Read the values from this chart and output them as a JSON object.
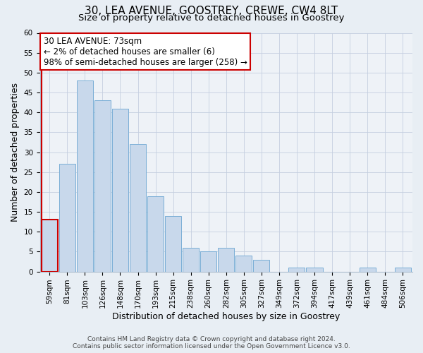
{
  "title": "30, LEA AVENUE, GOOSTREY, CREWE, CW4 8LT",
  "subtitle": "Size of property relative to detached houses in Goostrey",
  "xlabel": "Distribution of detached houses by size in Goostrey",
  "ylabel": "Number of detached properties",
  "bar_color": "#c8d8eb",
  "bar_edge_color": "#7aaed6",
  "highlight_bar_edge_color": "#cc0000",
  "background_color": "#e8eef4",
  "plot_bg_color": "#eef2f7",
  "grid_color": "#c5cfe0",
  "categories": [
    "59sqm",
    "81sqm",
    "103sqm",
    "126sqm",
    "148sqm",
    "170sqm",
    "193sqm",
    "215sqm",
    "238sqm",
    "260sqm",
    "282sqm",
    "305sqm",
    "327sqm",
    "349sqm",
    "372sqm",
    "394sqm",
    "417sqm",
    "439sqm",
    "461sqm",
    "484sqm",
    "506sqm"
  ],
  "values": [
    13,
    27,
    48,
    43,
    41,
    32,
    19,
    14,
    6,
    5,
    6,
    4,
    3,
    0,
    1,
    1,
    0,
    0,
    1,
    0,
    1
  ],
  "highlight_index": 0,
  "ylim": [
    0,
    60
  ],
  "yticks": [
    0,
    5,
    10,
    15,
    20,
    25,
    30,
    35,
    40,
    45,
    50,
    55,
    60
  ],
  "annotation_title": "30 LEA AVENUE: 73sqm",
  "annotation_line1": "← 2% of detached houses are smaller (6)",
  "annotation_line2": "98% of semi-detached houses are larger (258) →",
  "footer_line1": "Contains HM Land Registry data © Crown copyright and database right 2024.",
  "footer_line2": "Contains public sector information licensed under the Open Government Licence v3.0.",
  "title_fontsize": 11,
  "subtitle_fontsize": 9.5,
  "axis_label_fontsize": 9,
  "tick_fontsize": 7.5,
  "annotation_fontsize": 8.5,
  "footer_fontsize": 6.5
}
